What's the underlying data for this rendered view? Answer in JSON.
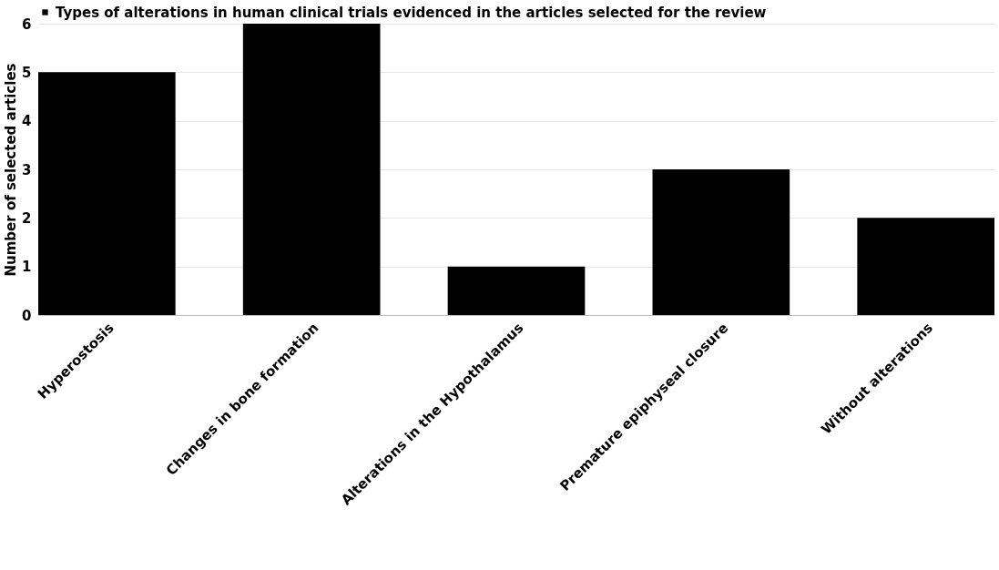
{
  "chart_data": {
    "type": "bar",
    "categories": [
      "Hyperostosis",
      "Changes in bone formation",
      "Alterations in the Hypothalamus",
      "Premature epiphyseal closure",
      "Without alterations"
    ],
    "series": [
      {
        "name": "Types of alterations in human clinical trials evidenced in the articles selected for the review",
        "color": "#000000",
        "values": [
          5,
          6,
          1,
          3,
          2
        ]
      }
    ],
    "ylabel": "Number of selected articles",
    "ylim": [
      0,
      6
    ],
    "yticks": [
      0,
      1,
      2,
      3,
      4,
      5,
      6
    ],
    "grid": "y",
    "legend": "top"
  }
}
